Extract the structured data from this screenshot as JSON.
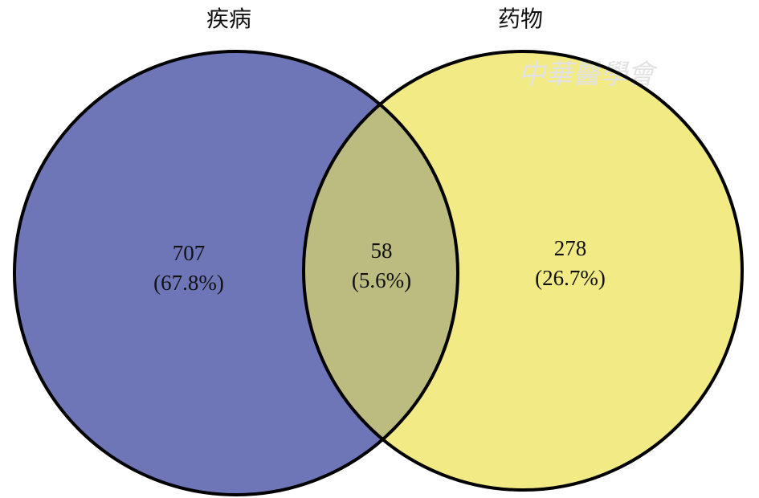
{
  "chart_data": {
    "type": "venn",
    "sets": [
      {
        "name": "疾病",
        "color": "#6e76b8"
      },
      {
        "name": "药物",
        "color": "#f2ea85"
      }
    ],
    "overlap_color": "#bcbb80",
    "regions": [
      "only-0",
      "both",
      "only-1"
    ],
    "values": [
      707,
      58,
      278
    ],
    "percents": [
      67.8,
      5.6,
      26.7
    ],
    "percent_labels": [
      "(67.8%)",
      "(5.6%)",
      "(26.7%)"
    ],
    "watermark": "中華醫學會"
  }
}
